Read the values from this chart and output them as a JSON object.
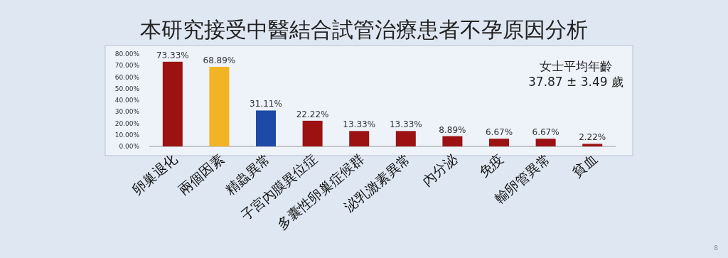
{
  "chart_data": {
    "type": "bar",
    "title": "本研究接受中醫結合試管治療患者不孕原因分析",
    "categories": [
      "卵巢退化",
      "兩個因素",
      "精蟲異常",
      "子宮內膜異位症",
      "多囊性卵巢症候群",
      "泌乳激素異常",
      "內分泌",
      "免疫",
      "輸卵管異常",
      "貧血"
    ],
    "values": [
      73.33,
      68.89,
      31.11,
      22.22,
      13.33,
      13.33,
      8.89,
      6.67,
      6.67,
      2.22
    ],
    "colors": [
      "#9c1212",
      "#f2b324",
      "#1c4aa6",
      "#9c1212",
      "#9c1212",
      "#9c1212",
      "#9c1212",
      "#9c1212",
      "#9c1212",
      "#9c1212"
    ],
    "value_labels": [
      "73.33%",
      "68.89%",
      "31.11%",
      "22.22%",
      "13.33%",
      "13.33%",
      "8.89%",
      "6.67%",
      "6.67%",
      "2.22%"
    ],
    "ylim": [
      0,
      80
    ],
    "yticks": [
      {
        "value": 0,
        "label": "0.00%"
      },
      {
        "value": 10,
        "label": "10.00%"
      },
      {
        "value": 20,
        "label": "20.00%"
      },
      {
        "value": 30,
        "label": "30.00%"
      },
      {
        "value": 40,
        "label": "40.00%"
      },
      {
        "value": 50,
        "label": "50.00%"
      },
      {
        "value": 60,
        "label": "60.00%"
      },
      {
        "value": 70,
        "label": "70.00%"
      },
      {
        "value": 80,
        "label": "80.00%"
      }
    ],
    "annotations": [
      "女士平均年齡",
      "37.87 ± 3.49 歲",
      "8"
    ]
  }
}
